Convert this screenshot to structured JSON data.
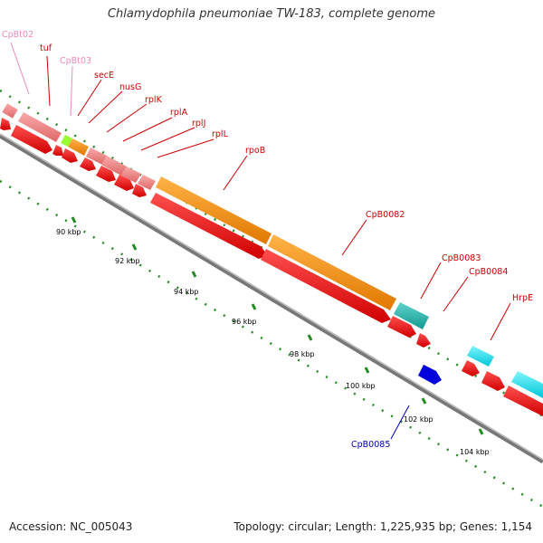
{
  "title": "Chlamydophila pneumoniae TW-183, complete genome",
  "footer": {
    "accession": "Accession: NC_005043",
    "summary": "Topology: circular; Length: 1,225,935 bp; Genes: 1,154"
  },
  "colors": {
    "gene_rna": "#f08080",
    "gene_pink": "#ff99cc",
    "gene_orange": "#ff8c00",
    "gene_teal": "#20b2aa",
    "gene_cyan": "#00e5ee",
    "gene_lime": "#99ff33",
    "cds_red": "#ff0000",
    "cds_blue": "#0000dd",
    "dots_green": "#228b22",
    "label_red": "#cc0000",
    "label_pink": "#ee88bb",
    "label_blue": "#0000aa"
  },
  "kbp_ticks": [
    {
      "kbp": 90,
      "label": "90 kbp"
    },
    {
      "kbp": 92,
      "label": "92 kbp"
    },
    {
      "kbp": 94,
      "label": "94 kbp"
    },
    {
      "kbp": 96,
      "label": "96 kbp"
    },
    {
      "kbp": 98,
      "label": "98 kbp"
    },
    {
      "kbp": 100,
      "label": "100 kbp"
    },
    {
      "kbp": 102,
      "label": "102 kbp"
    },
    {
      "kbp": 104,
      "label": "104 kbp"
    }
  ],
  "gene_labels": [
    {
      "text": "CpBt02",
      "color": "pink"
    },
    {
      "text": "tuf",
      "color": "red"
    },
    {
      "text": "CpBt03",
      "color": "pink"
    },
    {
      "text": "secE",
      "color": "red"
    },
    {
      "text": "nusG",
      "color": "red"
    },
    {
      "text": "rplK",
      "color": "red"
    },
    {
      "text": "rplA",
      "color": "red"
    },
    {
      "text": "rplJ",
      "color": "red"
    },
    {
      "text": "rplL",
      "color": "red"
    },
    {
      "text": "rpoB",
      "color": "red"
    },
    {
      "text": "CpB0082",
      "color": "red"
    },
    {
      "text": "CpB0083",
      "color": "red"
    },
    {
      "text": "CpB0084",
      "color": "red"
    },
    {
      "text": "HrpE",
      "color": "red"
    },
    {
      "text": "CpB0085",
      "color": "blue"
    }
  ]
}
